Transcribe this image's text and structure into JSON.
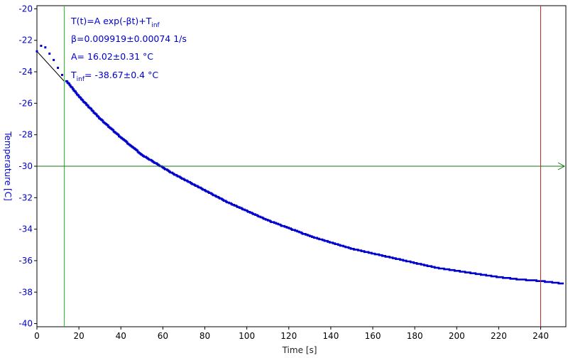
{
  "chart_data": {
    "type": "scatter",
    "title": "",
    "xlabel": "Time [s]",
    "ylabel": "Temperature [C]",
    "xlim": [
      0,
      252
    ],
    "ylim": [
      -40.2,
      -19.8
    ],
    "x_ticks": [
      0,
      20,
      40,
      60,
      80,
      100,
      120,
      140,
      160,
      180,
      200,
      220,
      240
    ],
    "y_ticks": [
      -20,
      -22,
      -24,
      -26,
      -28,
      -30,
      -32,
      -34,
      -36,
      -38,
      -40
    ],
    "grid": false,
    "colors": {
      "data": "#0000cc",
      "fit": "#000000",
      "left_cursor": "#22bb22",
      "right_cursor": "#cc2222",
      "threshold": "#117711",
      "axis_text": "#0000cc",
      "axis_title": "#222222"
    },
    "fit_model": {
      "formula": "T(t)=A exp(-βt)+T_inf",
      "beta": 0.009919,
      "A": 16.02,
      "T_inf": -38.67,
      "fit_range": [
        0,
        13
      ]
    },
    "cursors": {
      "left_x": 13,
      "right_x": 240,
      "threshold_y": -30
    },
    "series": [
      {
        "style": "markers",
        "x": [
          0,
          2,
          4,
          6,
          8,
          10,
          12,
          14,
          20,
          30,
          40,
          50,
          60,
          65,
          70,
          80,
          90,
          100,
          110,
          120,
          130,
          140,
          150,
          160,
          170,
          180,
          190,
          200,
          210,
          220,
          230,
          240,
          250
        ],
        "y": [
          -22.7,
          -22.35,
          -22.45,
          -22.85,
          -23.25,
          -23.75,
          -24.2,
          -24.6,
          -25.6,
          -27.0,
          -28.2,
          -29.3,
          -30.1,
          -30.5,
          -30.85,
          -31.55,
          -32.25,
          -32.85,
          -33.45,
          -33.95,
          -34.45,
          -34.85,
          -35.25,
          -35.55,
          -35.85,
          -36.15,
          -36.45,
          -36.65,
          -36.85,
          -37.05,
          -37.2,
          -37.3,
          -37.45
        ]
      }
    ],
    "annotations": {
      "formula_main": "T(t)=A exp(-βt)+T",
      "formula_sub": "inf",
      "beta_line": "β=0.009919±0.00074 1/s",
      "a_line": "A= 16.02±0.31 °C",
      "tinf_main": "T",
      "tinf_sub": "inf",
      "tinf_value": "= -38.67±0.4 °C"
    }
  }
}
